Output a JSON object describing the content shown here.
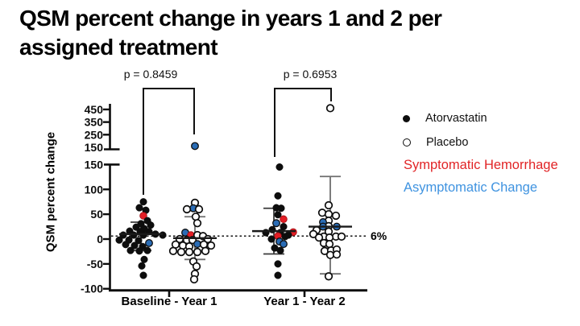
{
  "slide": {
    "title_lines": [
      "QSM percent change in years 1 and 2 per",
      "assigned treatment"
    ]
  },
  "chart_data": {
    "type": "scatter",
    "title": "QSM percent change in years 1 and 2 per assigned treatment",
    "ylabel": "QSM percent change",
    "xlabel": "",
    "categories": [
      "Baseline - Year 1",
      "Year 1 - Year 2"
    ],
    "axis": {
      "broken": true,
      "upper_ticks": [
        450,
        350,
        250,
        150
      ],
      "lower_ticks": [
        150,
        100,
        50,
        0,
        -50,
        -100
      ],
      "lower_range": [
        -100,
        150
      ],
      "upper_range": [
        150,
        460
      ],
      "grid": false
    },
    "reference_line": {
      "value": 6,
      "label": "6%",
      "style": "dotted"
    },
    "comparisons": [
      {
        "label": "p = 0.8459",
        "groups": [
          "Atorvastatin Baseline - Year 1",
          "Placebo Baseline - Year 1"
        ]
      },
      {
        "label": "p = 0.6953",
        "groups": [
          "Atorvastatin Year 1 - Year 2",
          "Placebo Year 1 - Year 2"
        ]
      }
    ],
    "legend": [
      {
        "label": "Atorvastatin",
        "marker": "filled",
        "color": "#0d0d0d"
      },
      {
        "label": "Placebo",
        "marker": "open",
        "color": "#0d0d0d"
      },
      {
        "label": "Symptomatic Hemorrhage",
        "color": "#e12426"
      },
      {
        "label": "Asymptomatic Change",
        "color": "#3f93e0"
      }
    ],
    "colors": {
      "atorvastatin_point": "#0d0d0d",
      "placebo_point_stroke": "#0d0d0d",
      "symptomatic_hemorrhage": "#e41e25",
      "asymptomatic_change": "#2a6cb5"
    },
    "point_format": "[dx_px, value_percent, flag] flag: 0=none, 1=symptomatic_hemorrhage, 2=asymptomatic_change",
    "groups": [
      {
        "name": "Atorvastatin",
        "category": "Baseline - Year 1",
        "marker": "filled",
        "mean": 10,
        "whisker_high": 34,
        "whisker_low": -23,
        "points": [
          [
            3,
            75,
            0
          ],
          [
            -2,
            63,
            0
          ],
          [
            6,
            58,
            0
          ],
          [
            3,
            47,
            1
          ],
          [
            8,
            37,
            0
          ],
          [
            0,
            31,
            0
          ],
          [
            12,
            28,
            0
          ],
          [
            -6,
            24,
            0
          ],
          [
            4,
            21,
            0
          ],
          [
            -14,
            16,
            0
          ],
          [
            -1,
            15,
            0
          ],
          [
            10,
            15,
            0
          ],
          [
            18,
            10,
            0
          ],
          [
            -22,
            8,
            0
          ],
          [
            -9,
            8,
            0
          ],
          [
            3,
            8,
            0
          ],
          [
            27,
            8,
            0
          ],
          [
            -27,
            -2,
            0
          ],
          [
            -15,
            -2,
            0
          ],
          [
            -3,
            -3,
            0
          ],
          [
            10,
            -8,
            2
          ],
          [
            -19,
            -11,
            0
          ],
          [
            -8,
            -13,
            0
          ],
          [
            2,
            -15,
            0
          ],
          [
            -13,
            -23,
            0
          ],
          [
            -2,
            -24,
            0
          ],
          [
            8,
            -23,
            0
          ],
          [
            4,
            -41,
            0
          ],
          [
            1,
            -54,
            0
          ],
          [
            3,
            -73,
            0
          ]
        ]
      },
      {
        "name": "Placebo",
        "category": "Baseline - Year 1",
        "marker": "open",
        "mean": 2,
        "whisker_high": 45,
        "whisker_low": -41,
        "points": [
          [
            0,
            160,
            2
          ],
          [
            0,
            73,
            0
          ],
          [
            -2,
            62,
            2
          ],
          [
            -10,
            60,
            0
          ],
          [
            5,
            60,
            0
          ],
          [
            1,
            45,
            0
          ],
          [
            3,
            32,
            0
          ],
          [
            -12,
            13,
            2
          ],
          [
            -5,
            8,
            1
          ],
          [
            3,
            8,
            0
          ],
          [
            10,
            6,
            0
          ],
          [
            -19,
            0,
            0
          ],
          [
            16,
            0,
            0
          ],
          [
            -10,
            -2,
            0
          ],
          [
            -3,
            -2,
            0
          ],
          [
            3,
            -10,
            2
          ],
          [
            -24,
            -11,
            0
          ],
          [
            11,
            -11,
            0
          ],
          [
            -15,
            -13,
            0
          ],
          [
            20,
            -13,
            0
          ],
          [
            -7,
            -15,
            0
          ],
          [
            -27,
            -24,
            0
          ],
          [
            13,
            -24,
            0
          ],
          [
            -17,
            -26,
            0
          ],
          [
            -7,
            -26,
            0
          ],
          [
            3,
            -26,
            0
          ],
          [
            -2,
            -45,
            0
          ],
          [
            2,
            -55,
            0
          ],
          [
            0,
            -70,
            0
          ],
          [
            -1,
            -81,
            0
          ]
        ]
      },
      {
        "name": "Atorvastatin",
        "category": "Year 1 - Year 2",
        "marker": "filled",
        "mean": 16,
        "whisker_high": 62,
        "whisker_low": -30,
        "points": [
          [
            7,
            145,
            0
          ],
          [
            5,
            87,
            0
          ],
          [
            3,
            63,
            0
          ],
          [
            9,
            62,
            0
          ],
          [
            5,
            49,
            0
          ],
          [
            12,
            40,
            1
          ],
          [
            3,
            32,
            2
          ],
          [
            12,
            25,
            0
          ],
          [
            -2,
            19,
            0
          ],
          [
            24,
            14,
            1
          ],
          [
            -10,
            13,
            0
          ],
          [
            8,
            13,
            0
          ],
          [
            18,
            8,
            0
          ],
          [
            5,
            6,
            1
          ],
          [
            -3,
            0,
            0
          ],
          [
            14,
            5,
            0
          ],
          [
            7,
            -5,
            2
          ],
          [
            12,
            -10,
            2
          ],
          [
            1,
            -18,
            0
          ],
          [
            8,
            -23,
            0
          ],
          [
            5,
            -50,
            0
          ],
          [
            5,
            -73,
            0
          ]
        ]
      },
      {
        "name": "Placebo",
        "category": "Year 1 - Year 2",
        "marker": "open",
        "mean": 25,
        "whisker_high": 126,
        "whisker_low": -70,
        "points": [
          [
            0,
            460,
            0
          ],
          [
            -2,
            68,
            0
          ],
          [
            -10,
            53,
            0
          ],
          [
            -2,
            50,
            0
          ],
          [
            7,
            47,
            0
          ],
          [
            -2,
            37,
            0
          ],
          [
            -9,
            34,
            2
          ],
          [
            -2,
            26,
            0
          ],
          [
            -9,
            25,
            2
          ],
          [
            8,
            25,
            2
          ],
          [
            -17,
            18,
            0
          ],
          [
            -2,
            15,
            0
          ],
          [
            -21,
            10,
            0
          ],
          [
            -8,
            5,
            0
          ],
          [
            7,
            5,
            0
          ],
          [
            14,
            5,
            0
          ],
          [
            -14,
            3,
            0
          ],
          [
            -1,
            3,
            0
          ],
          [
            -8,
            -8,
            0
          ],
          [
            -1,
            -10,
            0
          ],
          [
            -7,
            -24,
            0
          ],
          [
            1,
            -23,
            0
          ],
          [
            8,
            -21,
            0
          ],
          [
            0,
            -32,
            0
          ],
          [
            8,
            -31,
            0
          ],
          [
            -2,
            -75,
            0
          ]
        ]
      }
    ]
  }
}
